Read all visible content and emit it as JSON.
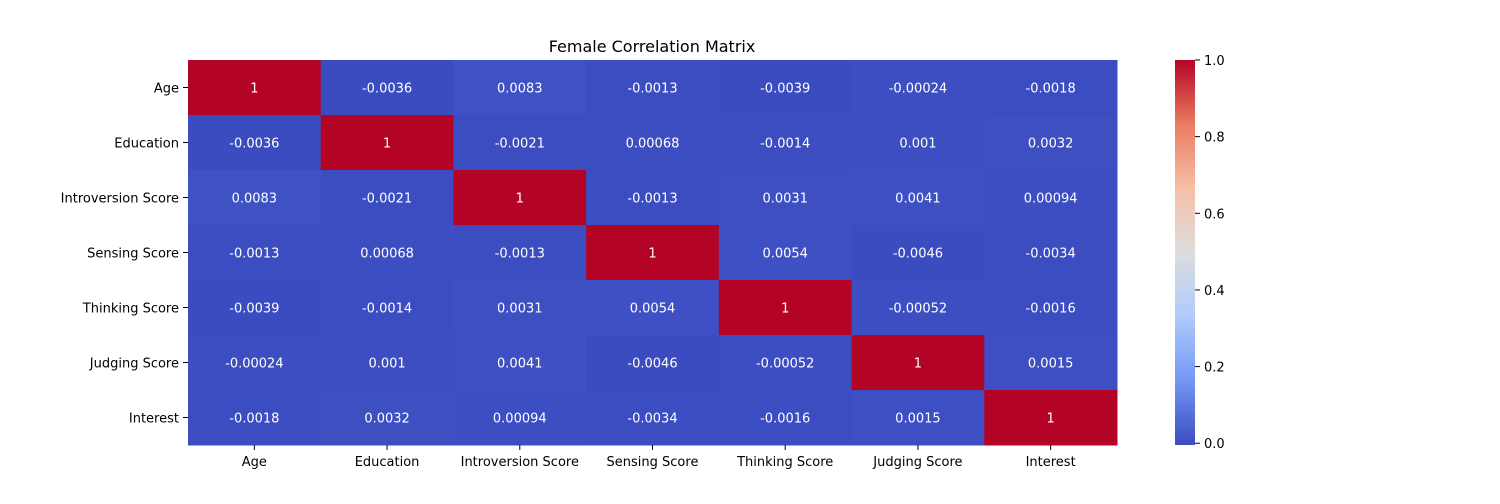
{
  "chart_data": {
    "type": "heatmap",
    "title": "Female Correlation Matrix",
    "xlabel": "",
    "ylabel": "",
    "x_labels": [
      "Age",
      "Education",
      "Introversion Score",
      "Sensing Score",
      "Thinking Score",
      "Judging Score",
      "Interest"
    ],
    "y_labels": [
      "Age",
      "Education",
      "Introversion Score",
      "Sensing Score",
      "Thinking Score",
      "Judging Score",
      "Interest"
    ],
    "values": [
      [
        1,
        -0.0036,
        0.0083,
        -0.0013,
        -0.0039,
        -0.00024,
        -0.0018
      ],
      [
        -0.0036,
        1,
        -0.0021,
        0.00068,
        -0.0014,
        0.001,
        0.0032
      ],
      [
        0.0083,
        -0.0021,
        1,
        -0.0013,
        0.0031,
        0.0041,
        0.00094
      ],
      [
        -0.0013,
        0.00068,
        -0.0013,
        1,
        0.0054,
        -0.0046,
        -0.0034
      ],
      [
        -0.0039,
        -0.0014,
        0.0031,
        0.0054,
        1,
        -0.00052,
        -0.0016
      ],
      [
        -0.00024,
        0.001,
        0.0041,
        -0.0046,
        -0.00052,
        1,
        0.0015
      ],
      [
        -0.0018,
        0.0032,
        0.00094,
        -0.0034,
        -0.0016,
        0.0015,
        1
      ]
    ],
    "annotations": [
      [
        "1",
        "-0.0036",
        "0.0083",
        "-0.0013",
        "-0.0039",
        "-0.00024",
        "-0.0018"
      ],
      [
        "-0.0036",
        "1",
        "-0.0021",
        "0.00068",
        "-0.0014",
        "0.001",
        "0.0032"
      ],
      [
        "0.0083",
        "-0.0021",
        "1",
        "-0.0013",
        "0.0031",
        "0.0041",
        "0.00094"
      ],
      [
        "-0.0013",
        "0.00068",
        "-0.0013",
        "1",
        "0.0054",
        "-0.0046",
        "-0.0034"
      ],
      [
        "-0.0039",
        "-0.0014",
        "0.0031",
        "0.0054",
        "1",
        "-0.00052",
        "-0.0016"
      ],
      [
        "-0.00024",
        "0.001",
        "0.0041",
        "-0.0046",
        "-0.00052",
        "1",
        "0.0015"
      ],
      [
        "-0.0018",
        "0.0032",
        "0.00094",
        "-0.0034",
        "-0.0016",
        "0.0015",
        "1"
      ]
    ],
    "colormap": "coolwarm",
    "colorbar": {
      "vmin": -0.0046,
      "vmax": 1,
      "ticks": [
        0.0,
        0.2,
        0.4,
        0.6,
        0.8,
        1.0
      ],
      "tick_labels": [
        "0.0",
        "0.2",
        "0.4",
        "0.6",
        "0.8",
        "1.0"
      ]
    },
    "colormap_stops": [
      "#3b4cc0",
      "#7396f5",
      "#b0cbfc",
      "#dddddd",
      "#f6bfa6",
      "#ea7b60",
      "#b40426"
    ],
    "annotation_color": "#ffffff",
    "grid": false
  }
}
